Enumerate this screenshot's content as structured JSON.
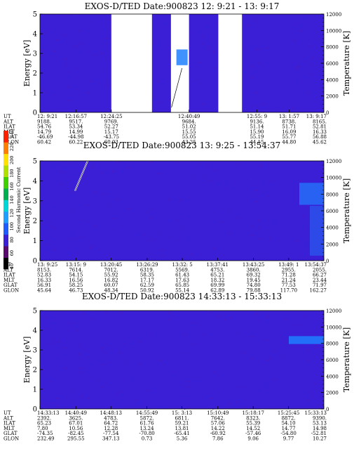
{
  "panels": [
    {
      "title": "EXOS-D/TED   Date:900823  12: 9:21 - 13: 9:17",
      "ylabel_left": "Energy [eV]",
      "ylabel_right": "Temperature [K]",
      "eph_labels": [
        "UT",
        "ALT",
        "ILAT",
        "MLT",
        "GLAT",
        "GLON"
      ],
      "columns": [
        [
          "12: 9:21",
          "9188.",
          "54.76",
          "14.79",
          "-46.69",
          "60.42"
        ],
        [
          "12:16:57",
          "9517.",
          "53.34",
          "14.99",
          "-44.98",
          "60.22"
        ],
        [
          "12:24:25",
          "9769.",
          "52.27",
          "15.17",
          "-43.75",
          "60.03"
        ],
        [
          "12:40:49",
          "9684.",
          "51.02",
          "15.55",
          "55.05",
          "43.25"
        ],
        [
          "12:55: 9",
          "9136.",
          "51.14",
          "15.90",
          "55.19",
          "44.15"
        ],
        [
          "13: 1:57",
          "8738.",
          "51.71",
          "16.09",
          "55.77",
          "44.80"
        ],
        [
          "13: 9:17",
          "8165.",
          "52.81",
          "16.33",
          "56.88",
          "45.62"
        ]
      ]
    },
    {
      "title": "EXOS-D/TED   Date:900823  13: 9:25 - 13:54:37",
      "ylabel_left": "Energy [eV]",
      "ylabel_right": "Temperature [K]",
      "eph_labels": [
        "UT",
        "ALT",
        "ILAT",
        "MLT",
        "GLAT",
        "GLON"
      ],
      "columns": [
        [
          "13: 9:25",
          "8153.",
          "52.83",
          "16.33",
          "56.91",
          "45.64"
        ],
        [
          "13:15: 9",
          "7614.",
          "54.15",
          "16.56",
          "58.25",
          "46.73"
        ],
        [
          "13:20:45",
          "7012.",
          "55.92",
          "16.82",
          "60.07",
          "48.34"
        ],
        [
          "13:26:29",
          "6319.",
          "58.35",
          "17.17",
          "62.59",
          "50.92"
        ],
        [
          "13:32: 5",
          "5569.",
          "61.43",
          "17.63",
          "65.85",
          "55.14"
        ],
        [
          "13:37:41",
          "4753.",
          "65.21",
          "18.32",
          "69.99",
          "62.89"
        ],
        [
          "13:43:25",
          "3860.",
          "69.32",
          "19.45",
          "74.80",
          "79.88"
        ],
        [
          "13:49: 1",
          "2955.",
          "71.28",
          "21.24",
          "77.53",
          "117.70"
        ],
        [
          "13:54:37",
          "2055.",
          "66.27",
          "23.44",
          "71.97",
          "162.27"
        ]
      ]
    },
    {
      "title": "EXOS-D/TED   Date:900823  14:33:13 - 15:33:13",
      "ylabel_left": "Energy [eV]",
      "ylabel_right": "Temperature [K]",
      "eph_labels": [
        "UT",
        "ALT",
        "ILAT",
        "MLT",
        "GLAT",
        "GLON"
      ],
      "columns": [
        [
          "14:33:13",
          "2392.",
          "65.23",
          "7.80",
          "-74.35",
          "232.49"
        ],
        [
          "14:40:49",
          "3625.",
          "67.01",
          "10.56",
          "-82.45",
          "295.55"
        ],
        [
          "14:48:13",
          "4783.",
          "64.72",
          "12.28",
          "-77.54",
          "347.13"
        ],
        [
          "14:55:49",
          "5872.",
          "61.76",
          "13.24",
          "-70.80",
          "0.73"
        ],
        [
          "15: 3:13",
          "6811.",
          "59.21",
          "13.81",
          "-65.41",
          "5.36"
        ],
        [
          "15:10:49",
          "7642.",
          "57.06",
          "14.22",
          "-60.92",
          "7.86"
        ],
        [
          "15:18:17",
          "8323.",
          "55.39",
          "14.52",
          "-57.46",
          "9.06"
        ],
        [
          "15:25:45",
          "8872.",
          "54.10",
          "14.77",
          "-54.80",
          "9.77"
        ],
        [
          "15:33:13",
          "9390.",
          "53.13",
          "14.98",
          "-52.81",
          "10.27"
        ]
      ]
    }
  ],
  "colorbar": {
    "label": "Second Harmonic Current",
    "ticks": [
      "40",
      "60",
      "80",
      "100",
      "120",
      "140",
      "160",
      "180",
      "200",
      "220",
      "240"
    ]
  },
  "chart_data": [
    {
      "type": "heatmap",
      "title": "EXOS-D/TED   Date:900823  12: 9:21 - 13: 9:17",
      "xlabel": "UT",
      "ylabel": "Energy [eV]",
      "y2label": "Temperature [K]",
      "ylim": [
        0,
        5
      ],
      "y2lim": [
        0,
        12000
      ],
      "yticks": [
        "0",
        "1",
        "2",
        "3",
        "4",
        "5"
      ],
      "y2ticks": [
        "0",
        "2000",
        "4000",
        "6000",
        "8000",
        "10000",
        "12000"
      ],
      "x": [
        "12: 9:21",
        "12:16:57",
        "12:24:25",
        "12:40:49",
        "12:55: 9",
        "13: 1:57",
        "13: 9:17"
      ],
      "data_gaps": [
        [
          "12:24:25",
          "12:33:00"
        ],
        [
          "12:37:00",
          "12:40:49"
        ],
        [
          "12:47:00",
          "12:52:00"
        ]
      ],
      "background_level": "low"
    },
    {
      "type": "heatmap",
      "title": "EXOS-D/TED   Date:900823  13: 9:25 - 13:54:37",
      "xlabel": "UT",
      "ylabel": "Energy [eV]",
      "y2label": "Temperature [K]",
      "ylim": [
        0,
        5
      ],
      "y2lim": [
        0,
        12000
      ],
      "yticks": [
        "0",
        "1",
        "2",
        "3",
        "4",
        "5"
      ],
      "y2ticks": [
        "0",
        "2000",
        "4000",
        "6000",
        "8000",
        "10000",
        "12000"
      ],
      "x": [
        "13: 9:25",
        "13:15: 9",
        "13:20:45",
        "13:26:29",
        "13:32: 5",
        "13:37:41",
        "13:43:25",
        "13:49: 1",
        "13:54:37"
      ],
      "background_level": "low"
    },
    {
      "type": "heatmap",
      "title": "EXOS-D/TED   Date:900823  14:33:13 - 15:33:13",
      "xlabel": "UT",
      "ylabel": "Energy [eV]",
      "y2label": "Temperature [K]",
      "ylim": [
        0,
        5
      ],
      "y2lim": [
        0,
        12000
      ],
      "yticks": [
        "0",
        "1",
        "2",
        "3",
        "4",
        "5"
      ],
      "y2ticks": [
        "0",
        "2000",
        "4000",
        "6000",
        "8000",
        "10000",
        "12000"
      ],
      "x": [
        "14:33:13",
        "14:40:49",
        "14:48:13",
        "14:55:49",
        "15: 3:13",
        "15:10:49",
        "15:18:17",
        "15:25:45",
        "15:33:13"
      ],
      "background_level": "low"
    }
  ],
  "colors": {
    "background_plasma": "#3a1fd6",
    "enhanced": "#1f7fff",
    "gap": "#ffffff"
  }
}
